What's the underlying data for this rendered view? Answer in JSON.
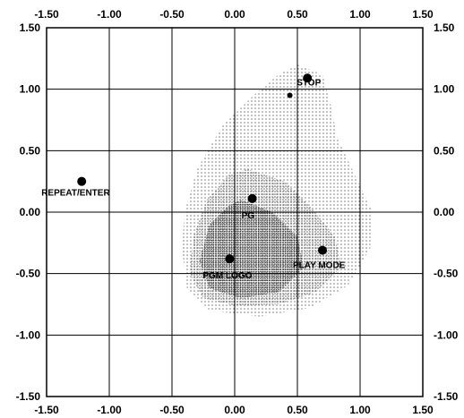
{
  "chart_data": {
    "type": "scatter",
    "title": "",
    "xlabel": "",
    "ylabel": "",
    "xlim": [
      -1.5,
      1.5
    ],
    "ylim": [
      -1.5,
      1.5
    ],
    "grid": true,
    "x_ticks": [
      -1.5,
      -1.0,
      -0.5,
      0.0,
      0.5,
      1.0,
      1.5
    ],
    "y_ticks": [
      1.5,
      1.0,
      0.5,
      0.0,
      -0.5,
      -1.0,
      -1.5
    ],
    "x_tick_labels": [
      "-1.50",
      "-1.00",
      "-0.50",
      "0.00",
      "0.50",
      "1.00",
      "1.50"
    ],
    "y_tick_labels": [
      "1.50",
      "1.00",
      "0.50",
      "0.00",
      "-0.50",
      "-1.00",
      "-1.50"
    ],
    "points": [
      {
        "label": "REPEAT/ENTER",
        "x": -1.22,
        "y": 0.25,
        "size": "large"
      },
      {
        "label": "STOP",
        "x": 0.58,
        "y": 1.09,
        "size": "large"
      },
      {
        "label": "",
        "x": 0.44,
        "y": 0.95,
        "size": "small"
      },
      {
        "label": "PG",
        "x": 0.14,
        "y": 0.11,
        "size": "large"
      },
      {
        "label": "PLAY MODE",
        "x": 0.7,
        "y": -0.31,
        "size": "large"
      },
      {
        "label": "PGM LOGO",
        "x": -0.04,
        "y": -0.38,
        "size": "large"
      }
    ],
    "regions": [
      {
        "density": "light",
        "outline": [
          [
            0.5,
            1.2
          ],
          [
            0.7,
            1.12
          ],
          [
            0.76,
            0.9
          ],
          [
            0.82,
            0.6
          ],
          [
            0.96,
            0.3
          ],
          [
            1.1,
            0.0
          ],
          [
            1.08,
            -0.3
          ],
          [
            0.9,
            -0.6
          ],
          [
            0.6,
            -0.78
          ],
          [
            0.2,
            -0.85
          ],
          [
            -0.2,
            -0.8
          ],
          [
            -0.38,
            -0.62
          ],
          [
            -0.42,
            -0.3
          ],
          [
            -0.4,
            0.0
          ],
          [
            -0.3,
            0.35
          ],
          [
            -0.1,
            0.7
          ],
          [
            0.15,
            0.95
          ],
          [
            0.35,
            1.12
          ]
        ]
      },
      {
        "density": "medium",
        "outline": [
          [
            0.1,
            0.35
          ],
          [
            0.4,
            0.25
          ],
          [
            0.6,
            0.05
          ],
          [
            0.8,
            -0.2
          ],
          [
            0.85,
            -0.45
          ],
          [
            0.65,
            -0.65
          ],
          [
            0.35,
            -0.75
          ],
          [
            0.0,
            -0.76
          ],
          [
            -0.25,
            -0.7
          ],
          [
            -0.36,
            -0.5
          ],
          [
            -0.33,
            -0.2
          ],
          [
            -0.22,
            0.1
          ],
          [
            -0.05,
            0.3
          ]
        ]
      },
      {
        "density": "dark",
        "outline": [
          [
            0.05,
            0.1
          ],
          [
            0.3,
            0.0
          ],
          [
            0.5,
            -0.2
          ],
          [
            0.55,
            -0.45
          ],
          [
            0.35,
            -0.65
          ],
          [
            0.05,
            -0.7
          ],
          [
            -0.2,
            -0.62
          ],
          [
            -0.28,
            -0.4
          ],
          [
            -0.2,
            -0.1
          ],
          [
            -0.05,
            0.05
          ]
        ]
      }
    ]
  }
}
